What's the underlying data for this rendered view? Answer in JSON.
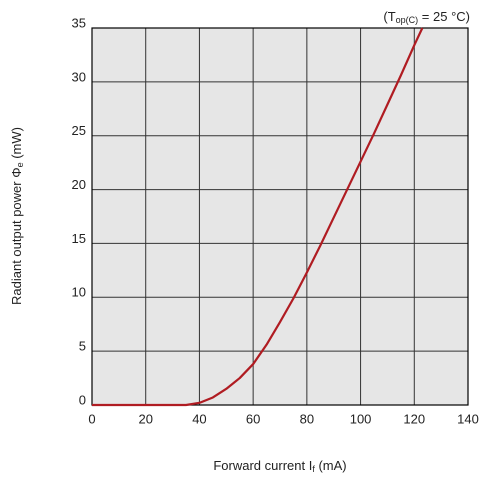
{
  "chart_data": {
    "type": "line",
    "annotation": [
      "(T",
      "op(C)",
      " = 25 °C)"
    ],
    "x_label": [
      "Forward current I",
      "f",
      " (mA)"
    ],
    "y_label": [
      "Radiant output power Φ",
      "e",
      " (mW)"
    ],
    "x": [
      0,
      20,
      35,
      40,
      45,
      50,
      55,
      60,
      65,
      70,
      75,
      80,
      85,
      90,
      95,
      100,
      105,
      110,
      115,
      120,
      123
    ],
    "series": [
      {
        "color": "#b01c22",
        "values": [
          0,
          0,
          0,
          0.2,
          0.7,
          1.5,
          2.5,
          3.8,
          5.6,
          7.7,
          9.9,
          12.3,
          14.8,
          17.4,
          20,
          22.6,
          25.2,
          27.9,
          30.6,
          33.4,
          35
        ]
      }
    ],
    "xlim": [
      0,
      140
    ],
    "xticks": [
      0,
      20,
      40,
      60,
      80,
      100,
      120,
      140
    ],
    "ylim": [
      0,
      35
    ],
    "yticks": [
      0,
      5,
      10,
      15,
      20,
      25,
      30,
      35
    ],
    "grid": true,
    "background": "#e6e6e6"
  }
}
